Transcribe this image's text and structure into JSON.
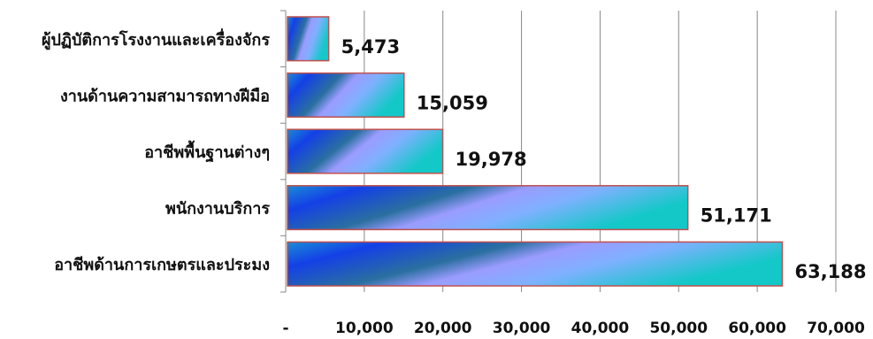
{
  "chart_data": {
    "type": "bar",
    "orientation": "horizontal",
    "title": "",
    "xlabel": "",
    "ylabel": "",
    "categories": [
      "ผู้ปฏิบัติการโรงงานและเครื่องจักร",
      "งานด้านความสามารถทางฝีมือ",
      "อาชีพพื้นฐานต่างๆ",
      "พนักงานบริการ",
      "อาชีพด้านการเกษตรและประมง"
    ],
    "values": [
      5473,
      15059,
      19978,
      51171,
      63188
    ],
    "value_labels": [
      "5,473",
      "15,059",
      "19,978",
      "51,171",
      "63,188"
    ],
    "xlim": [
      0,
      70000
    ],
    "x_ticks": [
      0,
      10000,
      20000,
      30000,
      40000,
      50000,
      60000,
      70000
    ],
    "x_tick_labels": [
      "-",
      "10,000",
      "20,000",
      "30,000",
      "40,000",
      "50,000",
      "60,000",
      "70,000"
    ],
    "grid": "vertical",
    "legend": "none",
    "colors": {
      "bar_border": "#c0504d",
      "gradient": [
        "#1a8bd6",
        "#1440e6",
        "#2a6fa0",
        "#9a9cff",
        "#7fb0ff",
        "#14c8c8"
      ],
      "gridline": "#888888",
      "axis": "#888888"
    }
  }
}
